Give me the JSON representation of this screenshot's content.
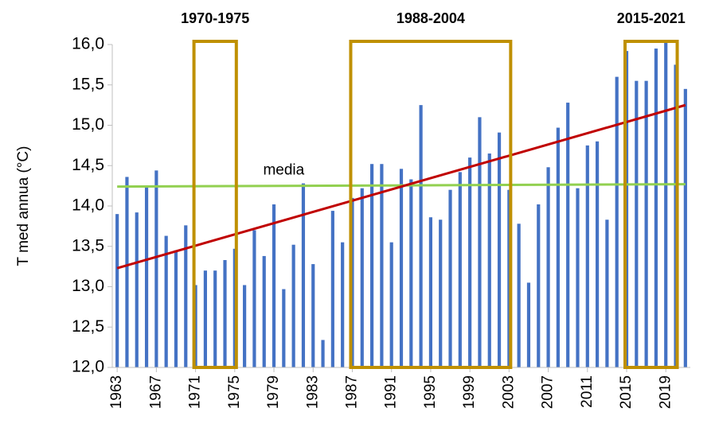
{
  "chart_data": {
    "type": "bar",
    "y_label": "T med annua (°C)",
    "x": [
      1963,
      1964,
      1965,
      1966,
      1967,
      1968,
      1969,
      1970,
      1971,
      1972,
      1973,
      1974,
      1975,
      1976,
      1977,
      1978,
      1979,
      1980,
      1981,
      1982,
      1983,
      1984,
      1985,
      1986,
      1987,
      1988,
      1989,
      1990,
      1991,
      1992,
      1993,
      1994,
      1995,
      1996,
      1997,
      1998,
      1999,
      2000,
      2001,
      2002,
      2003,
      2004,
      2005,
      2006,
      2007,
      2008,
      2009,
      2010,
      2011,
      2012,
      2013,
      2014,
      2015,
      2016,
      2017,
      2018,
      2019,
      2020,
      2021
    ],
    "values": [
      13.9,
      14.36,
      13.92,
      14.25,
      14.44,
      13.63,
      13.45,
      13.76,
      13.02,
      13.2,
      13.2,
      13.33,
      13.47,
      13.02,
      13.7,
      13.38,
      14.02,
      12.97,
      13.52,
      14.28,
      13.28,
      12.34,
      13.94,
      13.55,
      14.1,
      14.22,
      14.52,
      14.52,
      13.55,
      14.46,
      14.33,
      15.25,
      13.86,
      13.83,
      14.2,
      14.42,
      14.6,
      15.1,
      14.65,
      14.91,
      14.2,
      13.78,
      13.05,
      14.02,
      14.48,
      14.97,
      15.28,
      14.22,
      14.75,
      14.8,
      13.83,
      15.6,
      15.92,
      15.55,
      15.55,
      15.95,
      16.02,
      15.75,
      15.45
    ],
    "color": "#4472c4",
    "xlim": [
      1962.5,
      2021.5
    ],
    "xticks": [
      1963,
      1967,
      1971,
      1975,
      1979,
      1983,
      1987,
      1991,
      1995,
      1999,
      2003,
      2007,
      2011,
      2015,
      2019
    ],
    "ylim": [
      12,
      16
    ],
    "yticks": [
      {
        "value": 12,
        "label": "12,0"
      },
      {
        "value": 12.5,
        "label": "12,5"
      },
      {
        "value": 13,
        "label": "13,0"
      },
      {
        "value": 13.5,
        "label": "13,5"
      },
      {
        "value": 14,
        "label": "14,0"
      },
      {
        "value": 14.5,
        "label": "14,5"
      },
      {
        "value": 15,
        "label": "15,0"
      },
      {
        "value": 15.5,
        "label": "15,5"
      },
      {
        "value": 16,
        "label": "16,0"
      }
    ],
    "mean": {
      "label": "media",
      "x": [
        1963,
        2021
      ],
      "values": [
        14.24,
        14.27
      ],
      "color": "#92d050"
    },
    "trend": {
      "x": [
        1963,
        2021
      ],
      "values": [
        13.23,
        15.25
      ],
      "color": "#c00000"
    },
    "boxes": [
      {
        "label": "1970-1975",
        "range": [
          1971,
          1975
        ]
      },
      {
        "label": "1988-2004",
        "range": [
          1987,
          2003
        ]
      },
      {
        "label": "2015-2021",
        "range": [
          2015,
          2020
        ]
      }
    ],
    "box_color": "#bf9000"
  }
}
